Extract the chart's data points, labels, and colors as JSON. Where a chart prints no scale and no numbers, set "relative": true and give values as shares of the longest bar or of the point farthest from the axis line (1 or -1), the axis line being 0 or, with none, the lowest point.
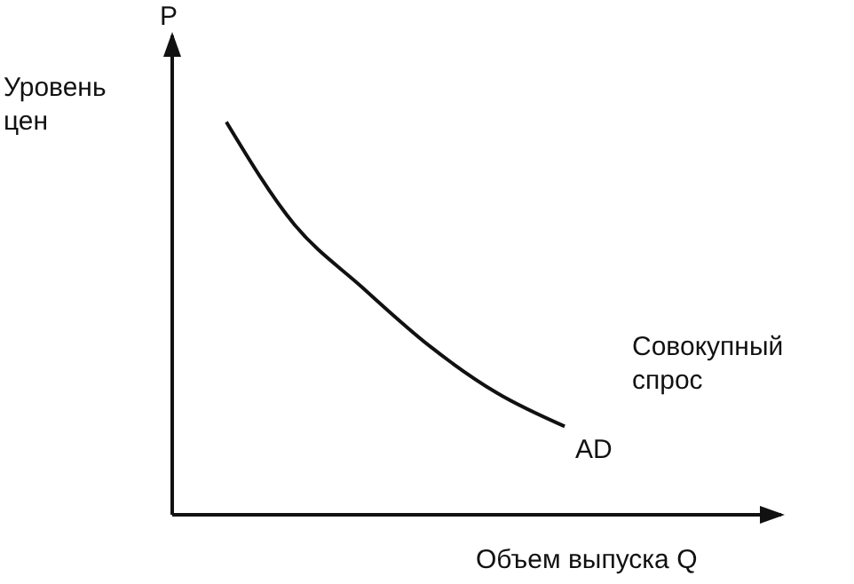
{
  "chart_data": {
    "type": "line",
    "relative": true,
    "xlabel": "Объем выпуска Q",
    "ylabel": "Уровень цен",
    "annotations": [
      "P",
      "Совокупный спрос"
    ],
    "categories": [
      null,
      null,
      null,
      null,
      null,
      null
    ],
    "series": [
      {
        "name": "AD",
        "color": "#111111",
        "values": [
          1,
          0.74,
          0.58,
          0.43,
          0.31,
          0.225
        ]
      }
    ],
    "marker": "none",
    "line_style": "solid",
    "grid": false,
    "legend": false
  }
}
